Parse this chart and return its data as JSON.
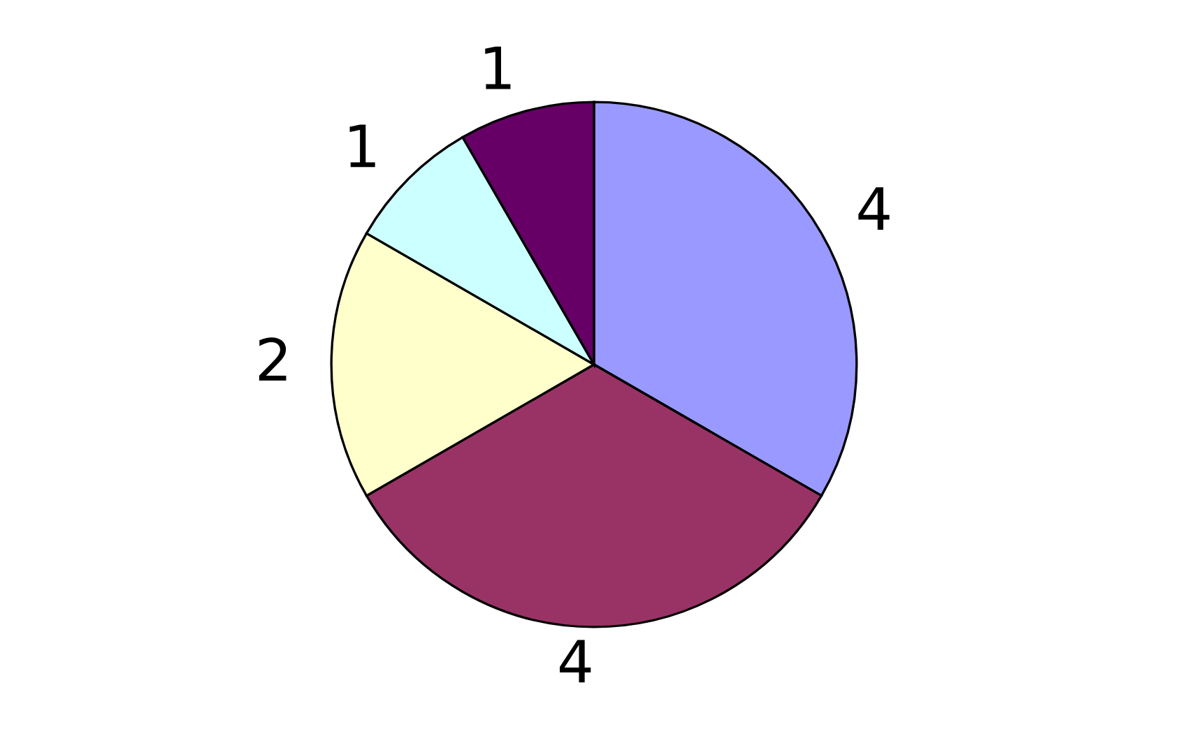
{
  "chart_data": {
    "type": "pie",
    "categories": [
      null,
      null,
      null,
      null,
      null
    ],
    "values": [
      4,
      4,
      2,
      1,
      1
    ],
    "colors": [
      "#9999ff",
      "#993366",
      "#ffffcc",
      "#ccffff",
      "#660066"
    ],
    "data_labels": true
  }
}
